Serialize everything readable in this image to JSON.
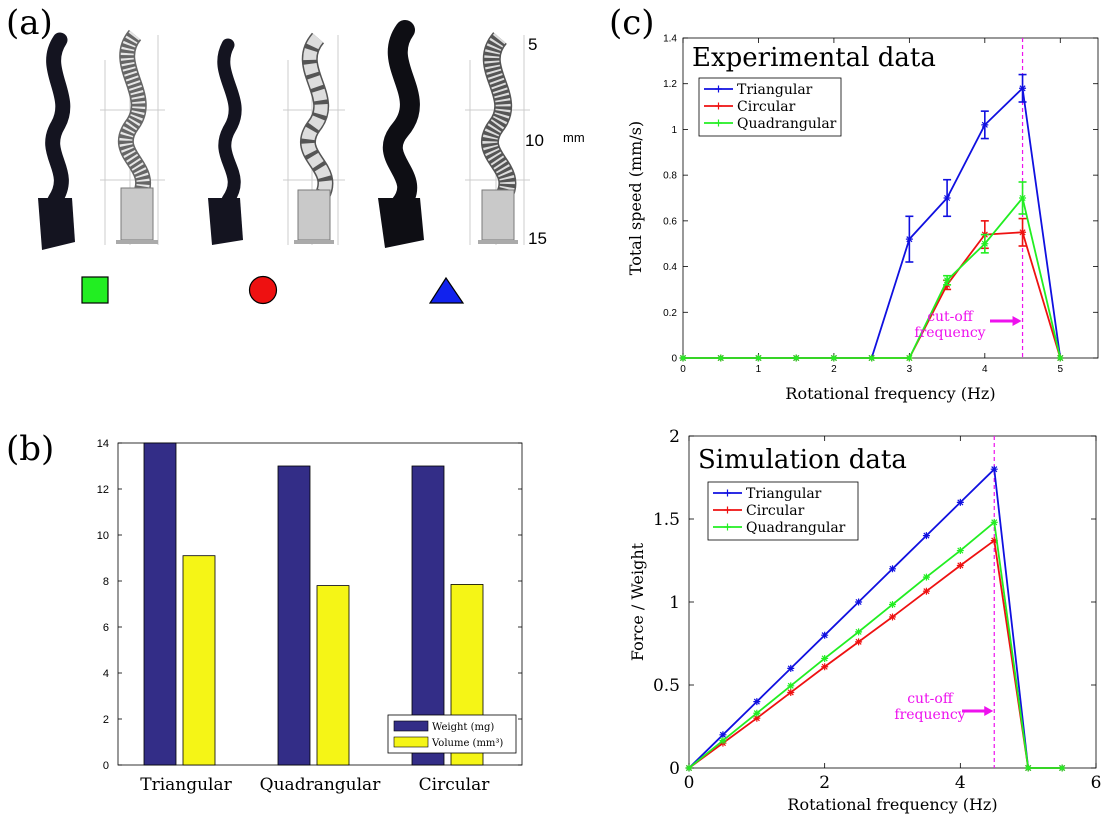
{
  "panel_a": {
    "label": "(a)",
    "scale_ticks": [
      "5",
      "10",
      "15"
    ],
    "scale_unit": "mm",
    "shapes": [
      {
        "shape": "square",
        "color": "#22ee22"
      },
      {
        "shape": "circle",
        "color": "#ee1111"
      },
      {
        "shape": "triangle",
        "color": "#1122ee"
      }
    ]
  },
  "panel_b_label": "(b)",
  "panel_c_label": "(c)",
  "chart_data": [
    {
      "id": "bar",
      "type": "bar",
      "categories": [
        "Triangular",
        "Quadrangular",
        "Circular"
      ],
      "series": [
        {
          "name": "Weight (mg)",
          "values": [
            14,
            13,
            13
          ],
          "color": "#332d87"
        },
        {
          "name": "Volume (mm³)",
          "values": [
            9.1,
            7.8,
            7.85
          ],
          "color": "#f5f516"
        }
      ],
      "ylim": [
        0,
        14
      ],
      "yticks": [
        "0",
        "2",
        "4",
        "6",
        "8",
        "10",
        "12",
        "14"
      ],
      "legend_position": "bottom-right"
    },
    {
      "id": "experimental",
      "type": "line",
      "title": "Experimental data",
      "xlabel": "Rotational frequency (Hz)",
      "ylabel": "Total speed (mm/s)",
      "xlim": [
        0,
        5.5
      ],
      "ylim": [
        0,
        1.4
      ],
      "xticks": [
        "0",
        "1",
        "2",
        "3",
        "4",
        "5"
      ],
      "yticks": [
        "0",
        "0.2",
        "0.4",
        "0.6",
        "0.8",
        "1",
        "1.2",
        "1.4"
      ],
      "x": [
        0,
        0.5,
        1,
        1.5,
        2,
        2.5,
        3,
        3.5,
        4,
        4.5,
        5
      ],
      "series": [
        {
          "name": "Triangular",
          "color": "#1010e0",
          "values": [
            0,
            0,
            0,
            0,
            0,
            0,
            0.52,
            0.7,
            1.02,
            1.18,
            0
          ],
          "errors": [
            0,
            0,
            0,
            0,
            0,
            0,
            0.1,
            0.08,
            0.06,
            0.06,
            0
          ]
        },
        {
          "name": "Circular",
          "color": "#ee1111",
          "values": [
            0,
            0,
            0,
            0,
            0,
            0,
            0,
            0.32,
            0.54,
            0.55,
            0
          ],
          "errors": [
            0,
            0,
            0,
            0,
            0,
            0,
            0,
            0.02,
            0.06,
            0.06,
            0
          ]
        },
        {
          "name": "Quadrangular",
          "color": "#22ee22",
          "values": [
            0,
            0,
            0,
            0,
            0,
            0,
            0,
            0.34,
            0.5,
            0.7,
            0
          ],
          "errors": [
            0,
            0,
            0,
            0,
            0,
            0,
            0,
            0.02,
            0.04,
            0.07,
            0
          ]
        }
      ],
      "annotation": {
        "lines": [
          "cut-off",
          "frequency"
        ],
        "x": 4.5,
        "color": "#ee11ee"
      },
      "legend_position": "top-left"
    },
    {
      "id": "simulation",
      "type": "line",
      "title": "Simulation data",
      "xlabel": "Rotational frequency (Hz)",
      "ylabel": "Force / Weight",
      "xlim": [
        0,
        6
      ],
      "ylim": [
        0,
        2
      ],
      "xticks": [
        "0",
        "2",
        "4",
        "6"
      ],
      "yticks": [
        "0",
        "0.5",
        "1",
        "1.5",
        "2"
      ],
      "x": [
        0,
        0.5,
        1,
        1.5,
        2,
        2.5,
        3,
        3.5,
        4,
        4.5,
        5,
        5.5
      ],
      "series": [
        {
          "name": "Triangular",
          "color": "#1010e0",
          "values": [
            0,
            0.2,
            0.4,
            0.6,
            0.8,
            1.0,
            1.2,
            1.4,
            1.6,
            1.8,
            0,
            0
          ]
        },
        {
          "name": "Circular",
          "color": "#ee1111",
          "values": [
            0,
            0.15,
            0.3,
            0.455,
            0.61,
            0.76,
            0.91,
            1.065,
            1.22,
            1.37,
            0,
            0
          ]
        },
        {
          "name": "Quadrangular",
          "color": "#22ee22",
          "values": [
            0,
            0.165,
            0.33,
            0.495,
            0.66,
            0.82,
            0.985,
            1.15,
            1.31,
            1.48,
            0,
            0
          ]
        }
      ],
      "annotation": {
        "lines": [
          "cut-off",
          "frequency"
        ],
        "x": 4.5,
        "color": "#ee11ee"
      },
      "legend_position": "top-left"
    }
  ]
}
